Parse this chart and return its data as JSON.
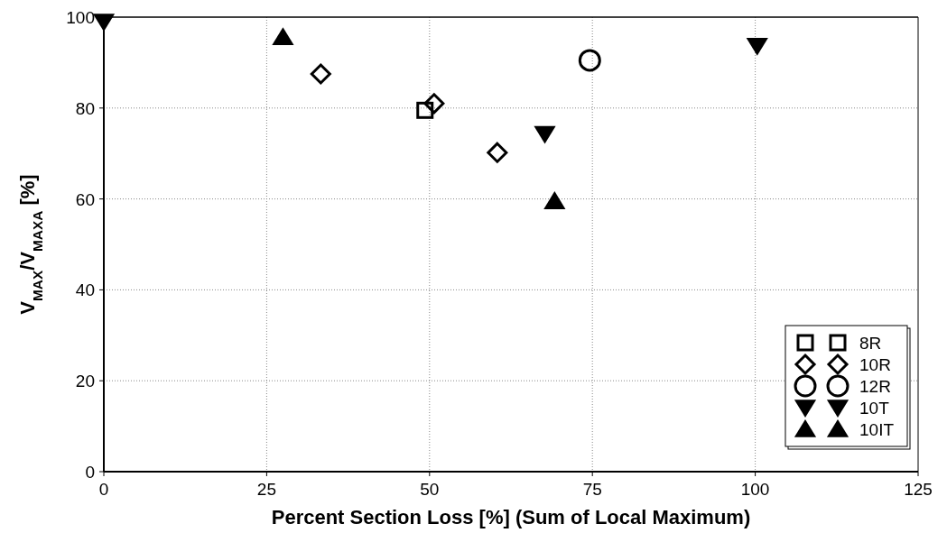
{
  "chart_data": {
    "type": "scatter",
    "xlabel": "Percent Section Loss [%] (Sum of Local Maximum)",
    "ylabel": "V$_{MAX}$/V$_{MAXA}$ [%]",
    "xlim": [
      0,
      125
    ],
    "ylim": [
      0,
      100
    ],
    "xticks": [
      0,
      25,
      50,
      75,
      100,
      125
    ],
    "yticks": [
      0,
      20,
      40,
      60,
      80,
      100
    ],
    "grid": true,
    "legend": "bottom right",
    "series": [
      {
        "name": "8R",
        "color": "#000000",
        "marker": "square",
        "x": [
          49.3
        ],
        "values": [
          79.5
        ]
      },
      {
        "name": "10R",
        "color": "#000000",
        "marker": "diamond",
        "x": [
          33.3,
          50.7,
          60.4
        ],
        "values": [
          87.5,
          81,
          70.2
        ]
      },
      {
        "name": "12R",
        "color": "#000000",
        "marker": "circle",
        "x": [
          74.6
        ],
        "values": [
          90.5
        ]
      },
      {
        "name": "10T",
        "color": "#000000",
        "marker": "triangle-down",
        "x": [
          0,
          67.7,
          100.3
        ],
        "values": [
          99,
          74.3,
          93.7
        ]
      },
      {
        "name": "10IT",
        "color": "#000000",
        "marker": "triangle",
        "x": [
          27.5,
          69.2
        ],
        "values": [
          95.6,
          59.5
        ]
      }
    ]
  }
}
